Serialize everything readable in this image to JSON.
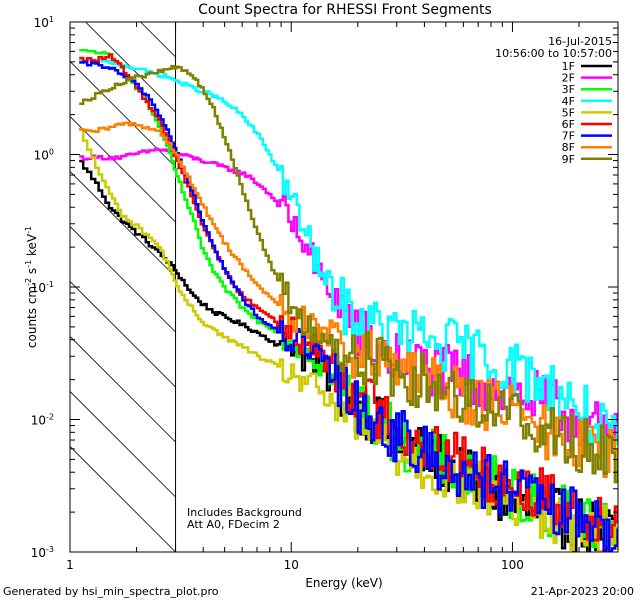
{
  "chart_data": {
    "type": "line",
    "title": "Count Spectra for RHESSI Front Segments",
    "xlabel": "Energy (keV)",
    "ylabel_base": "counts cm",
    "ylabel_sup1": "-2",
    "ylabel_mid1": " s",
    "ylabel_sup2": "-1",
    "ylabel_mid2": " keV",
    "ylabel_sup3": "-1",
    "x_scale": "log",
    "y_scale": "log",
    "xlim": [
      1,
      300
    ],
    "ylim": [
      0.001,
      10
    ],
    "x_ticks": [
      {
        "value": 1,
        "label": "1"
      },
      {
        "value": 10,
        "label": "10"
      },
      {
        "value": 100,
        "label": "100"
      }
    ],
    "y_ticks": [
      {
        "value": 0.001,
        "base": "10",
        "exp": "-3"
      },
      {
        "value": 0.01,
        "base": "10",
        "exp": "-2"
      },
      {
        "value": 0.1,
        "base": "10",
        "exp": "-1"
      },
      {
        "value": 1,
        "base": "10",
        "exp": "0"
      },
      {
        "value": 10,
        "base": "10",
        "exp": "1"
      }
    ],
    "date": "16-Jul-2015",
    "time_range": "10:56:00 to 10:57:00",
    "excluded_below_kev": 3,
    "annotation_line1": "Includes Background",
    "annotation_line2": "Att A0, FDecim 2",
    "x_centers": [
      1.1,
      1.3,
      1.5,
      1.7,
      1.9,
      2.2,
      2.5,
      2.8,
      3.1,
      3.5,
      3.9,
      4.4,
      4.9,
      5.5,
      6.2,
      7.0,
      7.9,
      8.9,
      10.0,
      11.2,
      12.6,
      14.1,
      15.8,
      17.8,
      20,
      22.4,
      25.1,
      28.2,
      31.6,
      35.5,
      39.8,
      44.7,
      50.1,
      56.2,
      63.1,
      70.8,
      79.4,
      89.1,
      100,
      112,
      126,
      141,
      158,
      178,
      200,
      224,
      251,
      282
    ],
    "series": [
      {
        "name": "1F",
        "color": "#000000",
        "values": [
          0.88,
          0.6,
          0.4,
          0.32,
          0.27,
          0.22,
          0.18,
          0.15,
          0.12,
          0.09,
          0.075,
          0.065,
          0.06,
          0.055,
          0.05,
          0.045,
          0.04,
          0.035,
          0.038,
          0.03,
          0.025,
          0.022,
          0.018,
          0.015,
          0.013,
          0.011,
          0.009,
          0.008,
          0.007,
          0.006,
          0.0055,
          0.005,
          0.0045,
          0.004,
          0.0035,
          0.003,
          0.0028,
          0.0025,
          0.0023,
          0.0021,
          0.002,
          0.0019,
          0.0018,
          0.0017,
          0.0016,
          0.0015,
          0.0014,
          0.0013
        ]
      },
      {
        "name": "2F",
        "color": "#ff00ff",
        "values": [
          0.95,
          0.95,
          0.95,
          0.95,
          1.0,
          1.05,
          1.1,
          1.05,
          1.0,
          0.95,
          0.9,
          0.85,
          0.8,
          0.75,
          0.7,
          0.6,
          0.5,
          0.4,
          0.3,
          0.22,
          0.15,
          0.1,
          0.08,
          0.06,
          0.045,
          0.038,
          0.033,
          0.03,
          0.028,
          0.026,
          0.025,
          0.024,
          0.022,
          0.021,
          0.02,
          0.019,
          0.018,
          0.017,
          0.016,
          0.015,
          0.014,
          0.013,
          0.012,
          0.011,
          0.01,
          0.009,
          0.008,
          0.007
        ]
      },
      {
        "name": "3F",
        "color": "#00ff00",
        "values": [
          6.0,
          6.0,
          5.5,
          4.5,
          3.5,
          2.5,
          1.6,
          1.0,
          0.6,
          0.35,
          0.2,
          0.13,
          0.1,
          0.08,
          0.065,
          0.055,
          0.05,
          0.045,
          0.04,
          0.035,
          0.03,
          0.025,
          0.02,
          0.016,
          0.013,
          0.011,
          0.009,
          0.008,
          0.007,
          0.006,
          0.0055,
          0.005,
          0.0045,
          0.004,
          0.0038,
          0.0035,
          0.0033,
          0.003,
          0.0028,
          0.0026,
          0.0024,
          0.0022,
          0.002,
          0.0019,
          0.0018,
          0.0017,
          0.0016,
          0.0015
        ]
      },
      {
        "name": "4F",
        "color": "#00ffff",
        "values": [
          5.0,
          5.0,
          5.0,
          4.8,
          4.5,
          4.2,
          4.0,
          3.8,
          3.5,
          3.2,
          3.0,
          2.8,
          2.5,
          2.2,
          1.8,
          1.4,
          1.0,
          0.7,
          0.45,
          0.28,
          0.17,
          0.11,
          0.08,
          0.065,
          0.055,
          0.05,
          0.048,
          0.046,
          0.044,
          0.042,
          0.04,
          0.038,
          0.036,
          0.034,
          0.032,
          0.03,
          0.028,
          0.026,
          0.024,
          0.022,
          0.02,
          0.018,
          0.016,
          0.014,
          0.012,
          0.01,
          0.008,
          0.0065
        ]
      },
      {
        "name": "5F",
        "color": "#cccc00",
        "values": [
          1.5,
          0.8,
          0.5,
          0.35,
          0.3,
          0.25,
          0.2,
          0.14,
          0.09,
          0.07,
          0.055,
          0.048,
          0.042,
          0.038,
          0.034,
          0.03,
          0.027,
          0.024,
          0.022,
          0.02,
          0.017,
          0.015,
          0.013,
          0.011,
          0.009,
          0.008,
          0.007,
          0.006,
          0.0055,
          0.005,
          0.0045,
          0.004,
          0.0038,
          0.0035,
          0.0033,
          0.003,
          0.0028,
          0.0026,
          0.0024,
          0.0022,
          0.002,
          0.0019,
          0.0018,
          0.0017,
          0.0016,
          0.0015,
          0.0014,
          0.0013
        ]
      },
      {
        "name": "6F",
        "color": "#ff0000",
        "values": [
          5.2,
          5.2,
          5.5,
          4.5,
          3.5,
          2.5,
          1.8,
          1.2,
          0.8,
          0.5,
          0.3,
          0.2,
          0.14,
          0.1,
          0.08,
          0.07,
          0.06,
          0.05,
          0.045,
          0.04,
          0.035,
          0.03,
          0.025,
          0.02,
          0.016,
          0.013,
          0.011,
          0.009,
          0.008,
          0.007,
          0.0065,
          0.006,
          0.0055,
          0.005,
          0.0045,
          0.004,
          0.0038,
          0.0035,
          0.0033,
          0.003,
          0.0028,
          0.0026,
          0.0024,
          0.0022,
          0.002,
          0.0019,
          0.0018,
          0.0017
        ]
      },
      {
        "name": "7F",
        "color": "#0000ff",
        "values": [
          4.8,
          4.8,
          4.5,
          4.0,
          3.5,
          2.8,
          2.0,
          1.4,
          0.9,
          0.55,
          0.32,
          0.2,
          0.14,
          0.1,
          0.075,
          0.06,
          0.05,
          0.045,
          0.04,
          0.035,
          0.03,
          0.025,
          0.02,
          0.016,
          0.013,
          0.011,
          0.009,
          0.008,
          0.007,
          0.006,
          0.0055,
          0.005,
          0.0045,
          0.004,
          0.0038,
          0.0035,
          0.0033,
          0.003,
          0.0028,
          0.0026,
          0.0024,
          0.0022,
          0.002,
          0.0019,
          0.0018,
          0.0017,
          0.0016,
          0.0015
        ]
      },
      {
        "name": "8F",
        "color": "#ff8000",
        "values": [
          1.5,
          1.5,
          1.6,
          1.7,
          1.7,
          1.6,
          1.5,
          1.2,
          0.9,
          0.6,
          0.42,
          0.3,
          0.22,
          0.17,
          0.13,
          0.1,
          0.085,
          0.07,
          0.06,
          0.055,
          0.05,
          0.045,
          0.04,
          0.035,
          0.03,
          0.028,
          0.026,
          0.024,
          0.022,
          0.02,
          0.019,
          0.018,
          0.017,
          0.016,
          0.015,
          0.014,
          0.013,
          0.012,
          0.011,
          0.01,
          0.009,
          0.008,
          0.0075,
          0.007,
          0.0065,
          0.006,
          0.0055,
          0.005
        ]
      },
      {
        "name": "9F",
        "color": "#808000",
        "values": [
          2.5,
          2.8,
          3.2,
          3.5,
          3.8,
          4.0,
          4.2,
          4.5,
          4.5,
          4.0,
          3.2,
          2.2,
          1.4,
          0.8,
          0.45,
          0.25,
          0.15,
          0.1,
          0.07,
          0.055,
          0.045,
          0.04,
          0.035,
          0.032,
          0.03,
          0.028,
          0.026,
          0.024,
          0.022,
          0.02,
          0.019,
          0.018,
          0.017,
          0.016,
          0.015,
          0.014,
          0.013,
          0.012,
          0.011,
          0.01,
          0.009,
          0.008,
          0.0075,
          0.007,
          0.0065,
          0.006,
          0.0055,
          0.005
        ]
      }
    ]
  },
  "footer": {
    "left": "Generated by hsi_min_spectra_plot.pro",
    "right": "21-Apr-2023 20:00"
  }
}
